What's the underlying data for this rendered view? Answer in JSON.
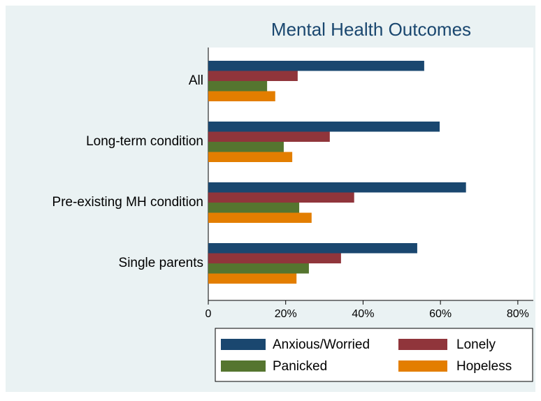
{
  "chart_data": {
    "type": "hbar",
    "title": "Mental Health Outcomes",
    "categories": [
      "All",
      "Long-term condition",
      "Pre-existing MH condition",
      "Single parents"
    ],
    "series": [
      {
        "name": "Anxious/Worried",
        "color": "#1a476f",
        "values": [
          55.8,
          59.8,
          66.6,
          54.0
        ]
      },
      {
        "name": "Lonely",
        "color": "#90353b",
        "values": [
          23.1,
          31.4,
          37.7,
          34.3
        ]
      },
      {
        "name": "Panicked",
        "color": "#55752f",
        "values": [
          15.2,
          19.5,
          23.5,
          26.0
        ]
      },
      {
        "name": "Hopeless",
        "color": "#e37e00",
        "values": [
          17.3,
          21.7,
          26.7,
          22.8
        ]
      }
    ],
    "xlim": [
      0,
      84
    ],
    "xticks": [
      0,
      {
        "value": 20,
        "label": "20%"
      },
      {
        "value": 40,
        "label": "40%"
      },
      {
        "value": 60,
        "label": "60%"
      },
      {
        "value": 80,
        "label": "80%"
      }
    ],
    "legend": "bottom"
  }
}
